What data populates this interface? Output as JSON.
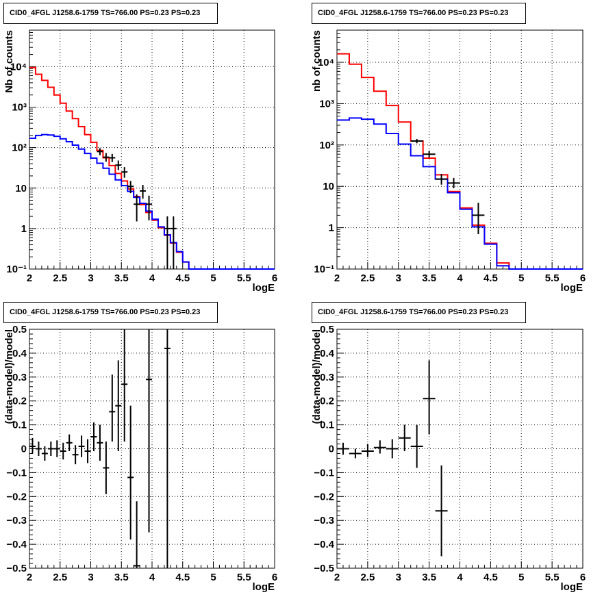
{
  "chart_data": [
    {
      "type": "histogram",
      "title": "CID0_4FGL J1258.6-1759 TS=766.00 PS=0.23 PS=0.23",
      "xlabel": "logE",
      "ylabel": "Nb of counts",
      "xlim": [
        2,
        6
      ],
      "ylim": [
        0.1,
        80000
      ],
      "yscale": "log",
      "xticks": [
        "2",
        "2.5",
        "3",
        "3.5",
        "4",
        "4.5",
        "5",
        "5.5",
        "6"
      ],
      "yticks": [
        "10⁻¹",
        "1",
        "10",
        "10²",
        "10³",
        "10⁴"
      ],
      "grid": true,
      "bin_edges": [
        2.0,
        2.1,
        2.2,
        2.3,
        2.4,
        2.5,
        2.6,
        2.7,
        2.8,
        2.9,
        3.0,
        3.1,
        3.2,
        3.3,
        3.4,
        3.5,
        3.6,
        3.7,
        3.8,
        3.9,
        4.0,
        4.1,
        4.2,
        4.3,
        4.4,
        4.5,
        4.6,
        4.7,
        4.8,
        4.9,
        5.0,
        5.1,
        5.2,
        5.3,
        5.4,
        5.5,
        5.6,
        5.7,
        5.8,
        5.9,
        6.0
      ],
      "series": [
        {
          "color": "#ff0000",
          "values": [
            9500,
            6500,
            4600,
            3100,
            2000,
            1250,
            800,
            520,
            330,
            210,
            135,
            85,
            56,
            36,
            23,
            15,
            9.5,
            6.2,
            3.9,
            2.5,
            1.6,
            1.05,
            0.68,
            0.44,
            0.26,
            0.15,
            0.1,
            0.1,
            0.1,
            0.1,
            0.1,
            0.1,
            0.1,
            0.1,
            0.1,
            0.1,
            0.1,
            0.1,
            0.1,
            0.1
          ]
        },
        {
          "color": "#0000ff",
          "values": [
            170,
            200,
            210,
            205,
            190,
            165,
            140,
            115,
            92,
            72,
            55,
            41,
            31,
            22,
            16,
            11.5,
            8.3,
            5.9,
            4.2,
            2.7,
            1.7,
            1.1,
            0.7,
            0.45,
            0.27,
            0.15,
            0.1,
            0.1,
            0.1,
            0.1,
            0.1,
            0.1,
            0.1,
            0.1,
            0.1,
            0.1,
            0.1,
            0.1,
            0.1,
            0.1
          ]
        }
      ],
      "points": [
        {
          "x": 3.15,
          "y": 80,
          "ylo": 65,
          "yhi": 97
        },
        {
          "x": 3.25,
          "y": 58,
          "ylo": 45,
          "yhi": 73
        },
        {
          "x": 3.35,
          "y": 56,
          "ylo": 44,
          "yhi": 70
        },
        {
          "x": 3.45,
          "y": 37,
          "ylo": 28,
          "yhi": 48
        },
        {
          "x": 3.55,
          "y": 25,
          "ylo": 18,
          "yhi": 33
        },
        {
          "x": 3.65,
          "y": 11,
          "ylo": 7.5,
          "yhi": 15
        },
        {
          "x": 3.75,
          "y": 4,
          "ylo": 1.5,
          "yhi": 7
        },
        {
          "x": 3.85,
          "y": 8.5,
          "ylo": 5.5,
          "yhi": 12
        },
        {
          "x": 3.95,
          "y": 4,
          "ylo": 1.6,
          "yhi": 6.5
        },
        {
          "x": 4.25,
          "y": 1,
          "ylo": 0.1,
          "yhi": 2
        },
        {
          "x": 4.35,
          "y": 1,
          "ylo": 0.1,
          "yhi": 2
        }
      ]
    },
    {
      "type": "histogram",
      "title": "CID0_4FGL J1258.6-1759 TS=766.00 PS=0.23 PS=0.23",
      "xlabel": "logE",
      "ylabel": "nb of counts",
      "xlim": [
        2,
        6
      ],
      "ylim": [
        0.1,
        60000
      ],
      "yscale": "log",
      "xticks": [
        "2",
        "2.5",
        "3",
        "3.5",
        "4",
        "4.5",
        "5",
        "5.5",
        "6"
      ],
      "yticks": [
        "10⁻¹",
        "1",
        "10",
        "10²",
        "10³",
        "10⁴"
      ],
      "grid": true,
      "bin_edges": [
        2.0,
        2.2,
        2.4,
        2.6,
        2.8,
        3.0,
        3.2,
        3.4,
        3.6,
        3.8,
        4.0,
        4.2,
        4.4,
        4.6,
        4.8,
        5.0,
        5.2,
        5.4,
        5.6,
        5.8,
        6.0
      ],
      "series": [
        {
          "color": "#ff0000",
          "values": [
            16000,
            9000,
            4300,
            2000,
            900,
            360,
            125,
            48,
            19,
            7.5,
            3,
            1.15,
            0.42,
            0.14,
            0.1,
            0.1,
            0.1,
            0.1,
            0.1,
            0.1
          ]
        },
        {
          "color": "#0000ff",
          "values": [
            400,
            450,
            420,
            320,
            190,
            105,
            55,
            30,
            15,
            7,
            2.8,
            1.05,
            0.4,
            0.12,
            0.1,
            0.1,
            0.1,
            0.1,
            0.1,
            0.1
          ]
        }
      ],
      "points": [
        {
          "x": 3.3,
          "y": 125,
          "ylo": 110,
          "yhi": 140
        },
        {
          "x": 3.5,
          "y": 60,
          "ylo": 50,
          "yhi": 72
        },
        {
          "x": 3.7,
          "y": 15,
          "ylo": 11,
          "yhi": 20
        },
        {
          "x": 3.9,
          "y": 12,
          "ylo": 9,
          "yhi": 16
        },
        {
          "x": 4.3,
          "y": 2,
          "ylo": 0.7,
          "yhi": 4
        }
      ]
    },
    {
      "type": "scatter",
      "title": "CID0_4FGL J1258.6-1759 TS=766.00 PS=0.23 PS=0.23",
      "xlabel": "logE",
      "ylabel": "(data-model)/model",
      "xlim": [
        2,
        6
      ],
      "ylim": [
        -0.5,
        0.5
      ],
      "xticks": [
        "2",
        "2.5",
        "3",
        "3.5",
        "4",
        "4.5",
        "5",
        "5.5",
        "6"
      ],
      "yticks": [
        "−0.5",
        "−0.4",
        "−0.3",
        "−0.2",
        "−0.1",
        "0",
        "0.1",
        "0.2",
        "0.3",
        "0.4",
        "0.5"
      ],
      "grid": true,
      "points": [
        {
          "x": 2.05,
          "y": 0.01,
          "ylo": -0.02,
          "yhi": 0.045
        },
        {
          "x": 2.15,
          "y": 0.0,
          "ylo": -0.03,
          "yhi": 0.03
        },
        {
          "x": 2.25,
          "y": -0.02,
          "ylo": -0.05,
          "yhi": 0.01
        },
        {
          "x": 2.35,
          "y": 0.0,
          "ylo": -0.03,
          "yhi": 0.03
        },
        {
          "x": 2.45,
          "y": 0.0,
          "ylo": -0.035,
          "yhi": 0.035
        },
        {
          "x": 2.55,
          "y": -0.01,
          "ylo": -0.045,
          "yhi": 0.025
        },
        {
          "x": 2.65,
          "y": 0.025,
          "ylo": -0.01,
          "yhi": 0.06
        },
        {
          "x": 2.75,
          "y": -0.025,
          "ylo": -0.065,
          "yhi": 0.015
        },
        {
          "x": 2.85,
          "y": 0.01,
          "ylo": -0.035,
          "yhi": 0.055
        },
        {
          "x": 2.95,
          "y": -0.01,
          "ylo": -0.06,
          "yhi": 0.04
        },
        {
          "x": 3.05,
          "y": 0.05,
          "ylo": -0.01,
          "yhi": 0.11
        },
        {
          "x": 3.15,
          "y": 0.025,
          "ylo": -0.05,
          "yhi": 0.1
        },
        {
          "x": 3.25,
          "y": -0.08,
          "ylo": -0.19,
          "yhi": 0.03
        },
        {
          "x": 3.35,
          "y": 0.155,
          "ylo": 0.03,
          "yhi": 0.31
        },
        {
          "x": 3.45,
          "y": 0.18,
          "ylo": -0.01,
          "yhi": 0.37
        },
        {
          "x": 3.55,
          "y": 0.27,
          "ylo": 0.03,
          "yhi": 0.5
        },
        {
          "x": 3.65,
          "y": -0.12,
          "ylo": -0.38,
          "yhi": 0.18
        },
        {
          "x": 3.75,
          "y": -0.49,
          "ylo": -0.5,
          "yhi": -0.22
        },
        {
          "x": 3.95,
          "y": 0.29,
          "ylo": -0.35,
          "yhi": 0.5
        },
        {
          "x": 4.25,
          "y": 0.42,
          "ylo": -0.5,
          "yhi": 0.5
        }
      ]
    },
    {
      "type": "scatter",
      "title": "CID0_4FGL J1258.6-1759 TS=766.00 PS=0.23 PS=0.23",
      "xlabel": "logE",
      "ylabel": "(data-model)/model",
      "xlim": [
        2,
        6
      ],
      "ylim": [
        -0.5,
        0.5
      ],
      "xticks": [
        "2",
        "2.5",
        "3",
        "3.5",
        "4",
        "4.5",
        "5",
        "5.5",
        "6"
      ],
      "yticks": [
        "−0.5",
        "−0.4",
        "−0.3",
        "−0.2",
        "−0.1",
        "0",
        "0.1",
        "0.2",
        "0.3",
        "0.4",
        "0.5"
      ],
      "grid": true,
      "points": [
        {
          "x": 2.1,
          "y": 0.0,
          "ylo": -0.025,
          "yhi": 0.025
        },
        {
          "x": 2.3,
          "y": -0.02,
          "ylo": -0.04,
          "yhi": 0.0
        },
        {
          "x": 2.5,
          "y": -0.01,
          "ylo": -0.035,
          "yhi": 0.02
        },
        {
          "x": 2.7,
          "y": 0.005,
          "ylo": -0.02,
          "yhi": 0.035
        },
        {
          "x": 2.9,
          "y": 0.0,
          "ylo": -0.04,
          "yhi": 0.04
        },
        {
          "x": 3.1,
          "y": 0.045,
          "ylo": -0.01,
          "yhi": 0.1
        },
        {
          "x": 3.3,
          "y": 0.01,
          "ylo": -0.08,
          "yhi": 0.1
        },
        {
          "x": 3.5,
          "y": 0.21,
          "ylo": 0.06,
          "yhi": 0.37
        },
        {
          "x": 3.7,
          "y": -0.26,
          "ylo": -0.45,
          "yhi": -0.07
        }
      ]
    }
  ]
}
